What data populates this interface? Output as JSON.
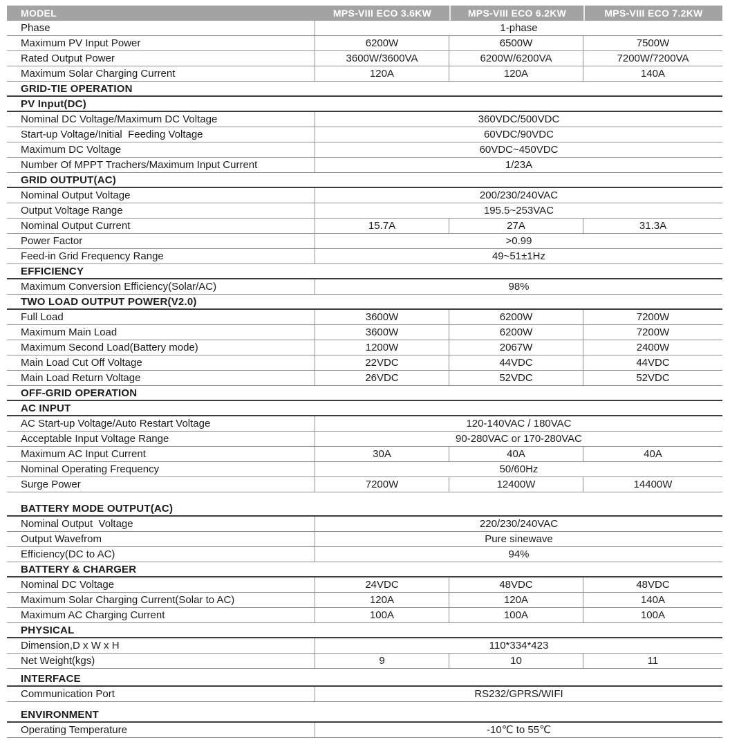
{
  "colors": {
    "header_bg": "#a3a3a3",
    "header_text": "#ffffff",
    "line": "#8f8f8f",
    "section_line": "#3c3c3c",
    "text": "#1c1c1c"
  },
  "header": {
    "model_label": "MODEL",
    "columns": [
      "MPS-VIII ECO 3.6KW",
      "MPS-VIII ECO 6.2KW",
      "MPS-VIII ECO 7.2KW"
    ]
  },
  "table": {
    "rows": [
      {
        "type": "spec",
        "label": "Phase",
        "span": "1-phase"
      },
      {
        "type": "spec",
        "label": "Maximum PV Input Power",
        "values": [
          "6200W",
          "6500W",
          "7500W"
        ]
      },
      {
        "type": "spec",
        "label": "Rated Output Power",
        "values": [
          "3600W/3600VA",
          "6200W/6200VA",
          "7200W/7200VA"
        ]
      },
      {
        "type": "spec",
        "label": "Maximum Solar Charging Current",
        "values": [
          "120A",
          "120A",
          "140A"
        ]
      },
      {
        "type": "section",
        "label": "GRID-TIE OPERATION"
      },
      {
        "type": "section",
        "label": "PV Input(DC)"
      },
      {
        "type": "spec",
        "label": "Nominal DC Voltage/Maximum DC Voltage",
        "span": "360VDC/500VDC"
      },
      {
        "type": "spec",
        "label": "Start-up Voltage/Initial  Feeding Voltage",
        "span": "60VDC/90VDC"
      },
      {
        "type": "spec",
        "label": "Maximum DC Voltage",
        "span": "60VDC~450VDC"
      },
      {
        "type": "spec",
        "label": "Number Of MPPT Trachers/Maximum Input Current",
        "span": "1/23A"
      },
      {
        "type": "section",
        "label": "GRID OUTPUT(AC)"
      },
      {
        "type": "spec",
        "label": "Nominal Output Voltage",
        "span": "200/230/240VAC"
      },
      {
        "type": "spec",
        "label": "Output Voltage Range",
        "span": "195.5~253VAC"
      },
      {
        "type": "spec",
        "label": "Nominal Output Current",
        "values": [
          "15.7A",
          "27A",
          "31.3A"
        ]
      },
      {
        "type": "spec",
        "label": "Power Factor",
        "span": ">0.99"
      },
      {
        "type": "spec",
        "label": "Feed-in Grid Frequency Range",
        "span": "49~51±1Hz"
      },
      {
        "type": "section",
        "label": "EFFICIENCY"
      },
      {
        "type": "spec",
        "label": "Maximum Conversion Efficiency(Solar/AC)",
        "span": "98%"
      },
      {
        "type": "section",
        "label": "TWO LOAD OUTPUT POWER(V2.0)"
      },
      {
        "type": "spec",
        "label": "Full Load",
        "values": [
          "3600W",
          "6200W",
          "7200W"
        ]
      },
      {
        "type": "spec",
        "label": "Maximum Main Load",
        "values": [
          "3600W",
          "6200W",
          "7200W"
        ]
      },
      {
        "type": "spec",
        "label": "Maximum Second Load(Battery mode)",
        "values": [
          "1200W",
          "2067W",
          "2400W"
        ]
      },
      {
        "type": "spec",
        "label": "Main Load Cut Off Voltage",
        "values": [
          "22VDC",
          "44VDC",
          "44VDC"
        ]
      },
      {
        "type": "spec",
        "label": "Main Load Return Voltage",
        "values": [
          "26VDC",
          "52VDC",
          "52VDC"
        ]
      },
      {
        "type": "section",
        "label": "OFF-GRID OPERATION"
      },
      {
        "type": "section",
        "label": "AC INPUT"
      },
      {
        "type": "spec",
        "label": "AC Start-up Voltage/Auto Restart Voltage",
        "span": "120-140VAC / 180VAC"
      },
      {
        "type": "spec",
        "label": "Acceptable Input Voltage Range",
        "span": "90-280VAC or 170-280VAC"
      },
      {
        "type": "spec",
        "label": "Maximum AC Input Current",
        "values": [
          "30A",
          "40A",
          "40A"
        ]
      },
      {
        "type": "spec",
        "label": "Nominal Operating Frequency",
        "span": "50/60Hz"
      },
      {
        "type": "spec",
        "label": "Surge Power",
        "values": [
          "7200W",
          "12400W",
          "14400W"
        ]
      },
      {
        "type": "section",
        "label": "BATTERY MODE OUTPUT(AC)",
        "break": "large"
      },
      {
        "type": "spec",
        "label": "Nominal Output  Voltage",
        "span": "220/230/240VAC"
      },
      {
        "type": "spec",
        "label": "Output Wavefrom",
        "span": "Pure sinewave"
      },
      {
        "type": "spec",
        "label": "Efficiency(DC to AC)",
        "span": "94%"
      },
      {
        "type": "section",
        "label": "BATTERY  & CHARGER"
      },
      {
        "type": "spec",
        "label": "Nominal DC Voltage",
        "values": [
          "24VDC",
          "48VDC",
          "48VDC"
        ]
      },
      {
        "type": "spec",
        "label": "Maximum Solar Charging Current(Solar to AC)",
        "values": [
          "120A",
          "120A",
          "140A"
        ]
      },
      {
        "type": "spec",
        "label": "Maximum AC Charging Current",
        "values": [
          "100A",
          "100A",
          "100A"
        ]
      },
      {
        "type": "section",
        "label": "PHYSICAL"
      },
      {
        "type": "spec",
        "label": "Dimension,D x W x H",
        "span": "110*334*423"
      },
      {
        "type": "spec",
        "label": "Net Weight(kgs)",
        "values": [
          "9",
          "10",
          "11"
        ]
      },
      {
        "type": "section",
        "label": "INTERFACE",
        "break": "small"
      },
      {
        "type": "spec",
        "label": "Communication Port",
        "span": "RS232/GPRS/WIFI"
      },
      {
        "type": "section",
        "label": "ENVIRONMENT",
        "break": "medium"
      },
      {
        "type": "spec",
        "label": "Operating Temperature",
        "span": "-10℃ to 55℃"
      }
    ]
  }
}
